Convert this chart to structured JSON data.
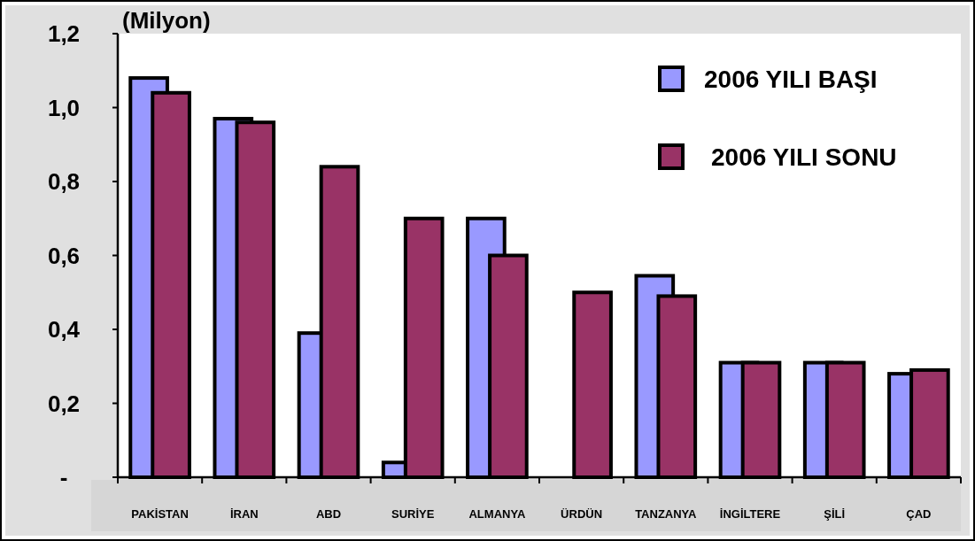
{
  "chart_data": {
    "type": "bar",
    "ylabel": "(Milyon)",
    "categories": [
      "PAKİSTAN",
      "İRAN",
      "ABD",
      "SURİYE",
      "ALMANYA",
      "ÜRDÜN",
      "TANZANYA",
      "İNGİLTERE",
      "ŞİLİ",
      "ÇAD"
    ],
    "series": [
      {
        "name": "2006 YILI BAŞI",
        "color": "#9999ff",
        "values": [
          1.08,
          0.97,
          0.39,
          0.04,
          0.7,
          null,
          0.545,
          0.31,
          0.31,
          0.28
        ]
      },
      {
        "name": "2006 YILI SONU",
        "color": "#993366",
        "values": [
          1.04,
          0.96,
          0.84,
          0.7,
          0.6,
          0.5,
          0.49,
          0.31,
          0.31,
          0.29
        ]
      }
    ],
    "ylim": [
      0,
      1.2
    ],
    "yticks": [
      {
        "value": 0,
        "label": "-"
      },
      {
        "value": 0.2,
        "label": "0,2"
      },
      {
        "value": 0.4,
        "label": "0,4"
      },
      {
        "value": 0.6,
        "label": "0,6"
      },
      {
        "value": 0.8,
        "label": "0,8"
      },
      {
        "value": 1,
        "label": "1,0"
      },
      {
        "value": 1.2,
        "label": "1,2"
      }
    ],
    "legend": "top right",
    "grid": false
  }
}
